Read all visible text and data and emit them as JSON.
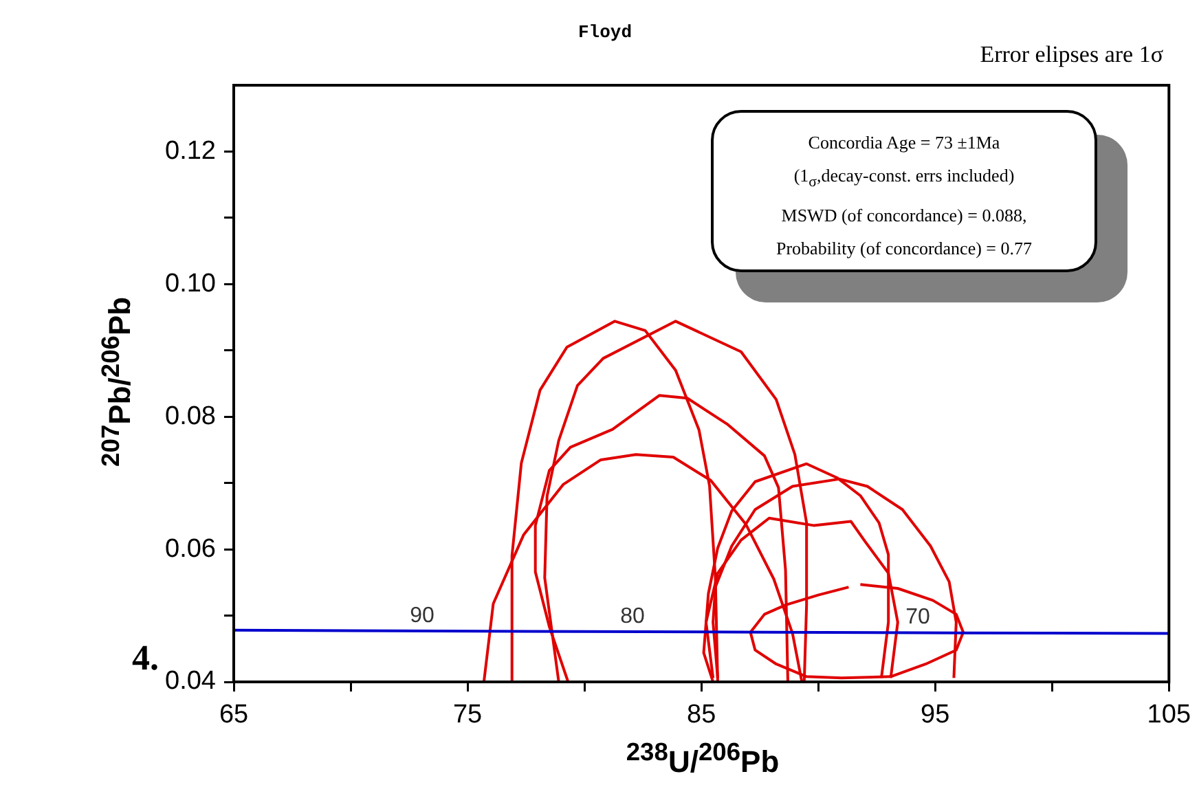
{
  "chart_data": {
    "type": "line",
    "title": "Floyd",
    "xlabel": "$^{238}$U/$^{206}$Pb",
    "ylabel": "$^{207}$Pb/$^{206}$Pb",
    "annotations": [
      "Error elipses are 1σ",
      "Concordia Age = 73 ±1Ma\n(1$_{σ}$,decay-const. errs included)\nMSWD (of concordance) = 0.088,\nProbability (of concordance) = 0.77",
      "4.",
      {
        "text": "90",
        "x": 72.3,
        "y": 0.0477
      },
      {
        "text": "80",
        "x": 81.3,
        "y": 0.0476
      },
      {
        "text": "70",
        "x": 93.5,
        "y": 0.0474
      }
    ],
    "xlim": [
      65,
      105
    ],
    "xticks": [
      65,
      {
        "value": 70,
        "label": null
      },
      75,
      {
        "value": 80,
        "label": null
      },
      85,
      {
        "value": 90,
        "label": null
      },
      95,
      {
        "value": 100,
        "label": null
      },
      105
    ],
    "ylim": [
      0.04,
      0.13
    ],
    "yticks": [
      {
        "value": 0.04,
        "label": "0.04"
      },
      {
        "value": 0.05,
        "label": null
      },
      {
        "value": 0.06,
        "label": "0.06"
      },
      {
        "value": 0.07,
        "label": null
      },
      {
        "value": 0.08,
        "label": "0.08"
      },
      {
        "value": 0.09,
        "label": null
      },
      {
        "value": 0.1,
        "label": "0.10"
      },
      {
        "value": 0.11,
        "label": null
      },
      {
        "value": 0.12,
        "label": "0.12"
      }
    ],
    "grid": false,
    "legend": false,
    "marker": "none",
    "line_style": "solid",
    "series": [
      {
        "color": "#0000cc",
        "x": [
          65,
          72,
          80,
          88,
          96,
          105
        ],
        "values": [
          0.0478,
          0.0477,
          0.0476,
          0.0475,
          0.0474,
          0.0473
        ]
      },
      {
        "color": "#e00000",
        "x": [
          76.9,
          76.9,
          77.3,
          78.1,
          79.25,
          81.3,
          82.6,
          83.9,
          84.9,
          85.35,
          85.6,
          85.7
        ],
        "values": [
          0.04,
          0.059,
          0.073,
          0.084,
          0.0905,
          0.0944,
          0.093,
          0.087,
          0.078,
          0.0696,
          0.0557,
          0.04
        ]
      },
      {
        "color": "#e00000",
        "x": [
          78.9,
          78.3,
          78.4,
          78.9,
          79.7,
          80.8,
          83.9,
          86.7,
          88.2,
          89.0,
          89.5,
          89.5,
          89.4
        ],
        "values": [
          0.04,
          0.0557,
          0.068,
          0.0764,
          0.0847,
          0.0888,
          0.0944,
          0.0898,
          0.0826,
          0.0743,
          0.064,
          0.0516,
          0.04
        ]
      },
      {
        "color": "#e00000",
        "x": [
          79.3,
          78.5,
          77.9,
          77.9,
          78.5,
          79.4,
          81.2,
          83.2,
          84.4,
          86.1,
          87.7,
          88.3,
          88.6,
          88.7
        ],
        "values": [
          0.04,
          0.0483,
          0.0566,
          0.0636,
          0.0719,
          0.0754,
          0.0781,
          0.0832,
          0.0828,
          0.0789,
          0.0741,
          0.0693,
          0.0569,
          0.04
        ]
      },
      {
        "color": "#e00000",
        "x": [
          75.7,
          76.1,
          77.4,
          79.1,
          80.7,
          82.2,
          83.8,
          85.4,
          86.9,
          88.1,
          88.9,
          89.3
        ],
        "values": [
          0.04,
          0.0518,
          0.0622,
          0.0698,
          0.0735,
          0.0743,
          0.0739,
          0.0704,
          0.0638,
          0.0555,
          0.0473,
          0.04
        ]
      },
      {
        "color": "#e00000",
        "x": [
          85.5,
          85.1,
          85.3,
          85.7,
          86.3,
          87.3,
          89.5,
          90.8,
          91.8,
          92.6,
          93.0,
          93.0,
          92.7
        ],
        "values": [
          0.04,
          0.0444,
          0.0533,
          0.0602,
          0.0658,
          0.0702,
          0.0729,
          0.0708,
          0.0681,
          0.064,
          0.0592,
          0.049,
          0.0406
        ]
      },
      {
        "color": "#e00000",
        "x": [
          85.7,
          85.5,
          85.6,
          86.3,
          87.3,
          88.9,
          90.9,
          92.1,
          93.6,
          94.8,
          95.6,
          95.9,
          95.8
        ],
        "values": [
          0.0406,
          0.049,
          0.0543,
          0.0605,
          0.066,
          0.0695,
          0.0706,
          0.0695,
          0.066,
          0.0605,
          0.0551,
          0.049,
          0.0406
        ]
      },
      {
        "color": "#e00000",
        "x": [
          85.5,
          85.2,
          85.7,
          86.7,
          87.9,
          89.8,
          91.4,
          92.0,
          93.0,
          93.4,
          93.1
        ],
        "values": [
          0.0406,
          0.049,
          0.0564,
          0.0614,
          0.0647,
          0.0636,
          0.0642,
          0.0612,
          0.0564,
          0.049,
          0.0406
        ]
      },
      {
        "color": "#e00000",
        "x": [
          91.8,
          93.4,
          94.9,
          95.9,
          96.2,
          95.9,
          94.6,
          93.1,
          91.0,
          89.5,
          88.2,
          87.3,
          87.1,
          87.7,
          88.6,
          90.0,
          91.3
        ],
        "values": [
          0.0547,
          0.0541,
          0.0523,
          0.0502,
          0.0475,
          0.0448,
          0.0427,
          0.0408,
          0.0406,
          0.0408,
          0.0427,
          0.0448,
          0.0475,
          0.0502,
          0.0516,
          0.0531,
          0.0543
        ]
      }
    ]
  }
}
